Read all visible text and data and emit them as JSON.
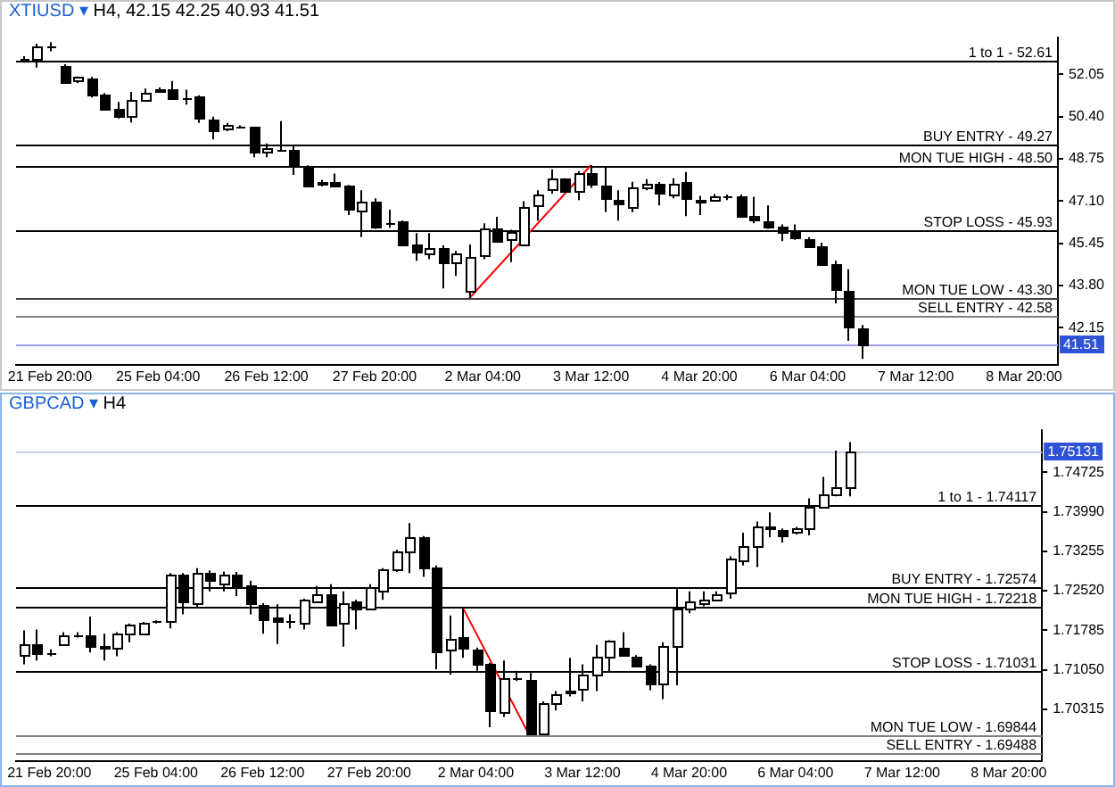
{
  "chart_data": [
    {
      "type": "candlestick",
      "title": "XTIUSD ▾ H4, 42.15 42.25 40.93 41.51",
      "color": "#000000",
      "categories": [
        null,
        null,
        "21 Feb 20:00",
        null,
        null,
        null,
        null,
        null,
        null,
        null,
        "25 Feb 04:00",
        null,
        null,
        null,
        null,
        null,
        null,
        null,
        "26 Feb 12:00",
        null,
        null,
        null,
        null,
        null,
        null,
        null,
        "27 Feb 20:00",
        null,
        null,
        null,
        null,
        null,
        null,
        null,
        "2 Mar 04:00",
        null,
        null,
        null,
        null,
        null,
        null,
        null,
        "3 Mar 12:00",
        null,
        null,
        null,
        null,
        null,
        null,
        null,
        "4 Mar 20:00",
        null,
        null,
        null,
        null,
        null,
        null,
        null,
        "6 Mar 04:00",
        null,
        null,
        null,
        null,
        null,
        null,
        null,
        "7 Mar 12:00",
        null,
        null,
        null,
        null,
        null,
        null,
        null,
        "8 Mar 20:00",
        null,
        null
      ],
      "ohlc": [
        [
          52.62,
          52.75,
          52.5,
          52.65
        ],
        [
          52.65,
          53.24,
          52.31,
          53.13
        ],
        [
          53.13,
          53.3,
          52.95,
          53.15
        ],
        [
          52.37,
          52.44,
          51.73,
          51.77
        ],
        [
          51.75,
          51.96,
          51.7,
          51.92
        ],
        [
          51.9,
          51.94,
          51.14,
          51.29
        ],
        [
          51.27,
          51.32,
          50.69,
          50.71
        ],
        [
          50.71,
          50.97,
          50.32,
          50.45
        ],
        [
          50.41,
          51.36,
          50.17,
          51.06
        ],
        [
          51.08,
          51.49,
          51.04,
          51.34
        ],
        [
          51.42,
          51.53,
          51.37,
          51.47
        ],
        [
          51.47,
          51.79,
          51.1,
          51.12
        ],
        [
          51.14,
          51.45,
          50.86,
          51.12
        ],
        [
          51.17,
          51.23,
          50.15,
          50.32
        ],
        [
          50.3,
          50.39,
          49.5,
          49.87
        ],
        [
          49.89,
          50.15,
          49.83,
          50.06
        ],
        [
          50.0,
          50.05,
          49.94,
          49.98
        ],
        [
          49.98,
          50.0,
          48.81,
          48.99
        ],
        [
          48.97,
          49.35,
          48.81,
          49.14
        ],
        [
          49.12,
          50.22,
          49.07,
          49.12
        ],
        [
          49.09,
          49.25,
          48.12,
          48.43
        ],
        [
          48.43,
          48.49,
          47.71,
          47.74
        ],
        [
          47.79,
          47.93,
          47.67,
          47.85
        ],
        [
          47.84,
          48.17,
          47.67,
          47.69
        ],
        [
          47.69,
          47.73,
          46.55,
          46.76
        ],
        [
          46.72,
          47.52,
          45.69,
          47.09
        ],
        [
          47.09,
          47.2,
          46.01,
          46.12
        ],
        [
          46.27,
          46.76,
          46.05,
          46.27
        ],
        [
          46.29,
          46.33,
          45.34,
          45.36
        ],
        [
          45.38,
          45.84,
          44.76,
          45.08
        ],
        [
          45.06,
          45.84,
          44.82,
          45.27
        ],
        [
          45.25,
          45.36,
          43.68,
          44.69
        ],
        [
          44.71,
          45.15,
          44.17,
          45.04
        ],
        [
          43.64,
          45.4,
          43.3,
          44.93
        ],
        [
          44.93,
          46.23,
          44.82,
          46.01
        ],
        [
          46.03,
          46.48,
          45.47,
          45.53
        ],
        [
          45.58,
          45.97,
          44.71,
          45.86
        ],
        [
          45.41,
          47.09,
          45.36,
          46.87
        ],
        [
          46.91,
          47.52,
          46.33,
          47.35
        ],
        [
          47.56,
          48.34,
          47.39,
          47.95
        ],
        [
          47.95,
          47.99,
          47.41,
          47.45
        ],
        [
          47.52,
          48.27,
          47.13,
          48.21
        ],
        [
          48.17,
          48.5,
          47.61,
          47.74
        ],
        [
          47.69,
          48.43,
          46.66,
          47.17
        ],
        [
          47.13,
          47.52,
          46.33,
          46.96
        ],
        [
          46.87,
          47.85,
          46.66,
          47.63
        ],
        [
          47.67,
          47.95,
          47.52,
          47.8
        ],
        [
          47.78,
          47.84,
          46.92,
          47.41
        ],
        [
          47.35,
          47.99,
          47.2,
          47.8
        ],
        [
          47.84,
          48.23,
          46.51,
          47.2
        ],
        [
          47.17,
          47.3,
          46.55,
          47.09
        ],
        [
          47.13,
          47.37,
          47.09,
          47.3
        ],
        [
          47.26,
          47.35,
          47.13,
          47.26
        ],
        [
          47.3,
          47.35,
          46.48,
          46.51
        ],
        [
          46.48,
          47.26,
          46.23,
          46.31
        ],
        [
          46.29,
          46.92,
          46.01,
          46.1
        ],
        [
          46.1,
          46.18,
          45.53,
          45.9
        ],
        [
          45.97,
          46.18,
          45.58,
          45.66
        ],
        [
          45.62,
          45.69,
          45.32,
          45.36
        ],
        [
          45.32,
          45.47,
          44.61,
          44.65
        ],
        [
          44.65,
          44.76,
          43.1,
          43.64
        ],
        [
          43.59,
          44.43,
          41.63,
          42.17
        ],
        [
          42.15,
          42.25,
          40.93,
          41.51
        ],
        null,
        null,
        null,
        null,
        null,
        null,
        null,
        null,
        null,
        null,
        null,
        null,
        null,
        null
      ],
      "colors": [
        "#000000",
        "#ffffff",
        "#000000",
        "#000000",
        "#ffffff",
        "#000000",
        "#000000",
        "#000000",
        "#ffffff",
        "#ffffff",
        "#ffffff",
        "#000000",
        "#000000",
        "#000000",
        "#000000",
        "#ffffff",
        "#000000",
        "#000000",
        "#ffffff",
        "#000000",
        "#000000",
        "#000000",
        "#ffffff",
        "#000000",
        "#000000",
        "#ffffff",
        "#000000",
        "#000000",
        "#000000",
        "#000000",
        "#ffffff",
        "#000000",
        "#ffffff",
        "#ffffff",
        "#ffffff",
        "#000000",
        "#ffffff",
        "#ffffff",
        "#ffffff",
        "#ffffff",
        "#000000",
        "#ffffff",
        "#000000",
        "#000000",
        "#000000",
        "#ffffff",
        "#ffffff",
        "#000000",
        "#ffffff",
        "#000000",
        "#000000",
        "#ffffff",
        "#000000",
        "#000000",
        "#000000",
        "#000000",
        "#000000",
        "#000000",
        "#000000",
        "#000000",
        "#000000",
        "#000000",
        "#000000",
        null,
        null,
        null,
        null,
        null,
        null,
        null,
        null,
        null,
        null,
        null,
        null,
        null,
        null
      ],
      "series": [
        {
          "type": "line",
          "color": "#ff0000",
          "values": [
            null,
            null,
            null,
            null,
            null,
            null,
            null,
            null,
            null,
            null,
            null,
            null,
            null,
            null,
            null,
            null,
            null,
            null,
            null,
            null,
            null,
            null,
            null,
            null,
            null,
            null,
            null,
            null,
            null,
            null,
            null,
            null,
            null,
            43.3,
            null,
            null,
            null,
            null,
            null,
            null,
            null,
            null,
            48.5,
            null,
            null,
            null,
            null,
            null,
            null,
            null,
            null,
            null,
            null,
            null,
            null,
            null,
            null,
            null,
            null,
            null,
            null,
            null,
            null,
            null,
            null,
            null,
            null,
            null,
            null,
            null,
            null,
            null,
            null,
            null,
            null,
            null,
            null
          ]
        }
      ],
      "ylim": [
        40.7,
        53.5
      ],
      "yticks": [
        42.15,
        {
          "value": 43.8,
          "label": "43.80"
        },
        45.45,
        {
          "value": 47.1,
          "label": "47.10"
        },
        48.75,
        {
          "value": 50.4,
          "label": "50.40"
        },
        52.05
      ],
      "ref_lines": [
        {
          "axis": "y",
          "value": 52.61,
          "label": "1 to 1 - 52.61",
          "color": "#000000"
        },
        {
          "axis": "y",
          "value": 49.27,
          "label": "BUY ENTRY - 49.27",
          "color": "#000000"
        },
        {
          "axis": "y",
          "value": 48.5,
          "label": "MON TUE HIGH - 48.50",
          "color": "#000000"
        },
        {
          "axis": "y",
          "value": 45.93,
          "label": "STOP LOSS - 45.93",
          "color": "#000000"
        },
        {
          "axis": "y",
          "value": 43.3,
          "label": "MON TUE LOW - 43.30",
          "color": "#404040"
        },
        {
          "axis": "y",
          "value": 42.58,
          "label": "SELL ENTRY - 42.58",
          "color": "#808080"
        },
        {
          "axis": "y",
          "value": 41.51,
          "color": "#9a9cf0"
        }
      ],
      "annotations": [
        {
          "text": "41.51",
          "y": 41.51
        }
      ]
    },
    {
      "type": "candlestick",
      "title": "GBPCAD ▾ H4",
      "color": "#000000",
      "categories": [
        null,
        null,
        "21 Feb 20:00",
        null,
        null,
        null,
        null,
        null,
        null,
        null,
        "25 Feb 04:00",
        null,
        null,
        null,
        null,
        null,
        null,
        null,
        "26 Feb 12:00",
        null,
        null,
        null,
        null,
        null,
        null,
        null,
        "27 Feb 20:00",
        null,
        null,
        null,
        null,
        null,
        null,
        null,
        "2 Mar 04:00",
        null,
        null,
        null,
        null,
        null,
        null,
        null,
        "3 Mar 12:00",
        null,
        null,
        null,
        null,
        null,
        null,
        null,
        "4 Mar 20:00",
        null,
        null,
        null,
        null,
        null,
        null,
        null,
        "6 Mar 04:00",
        null,
        null,
        null,
        null,
        null,
        null,
        null,
        "7 Mar 12:00",
        null,
        null,
        null,
        null,
        null,
        null,
        null,
        "8 Mar 20:00",
        null,
        null
      ],
      "ohlc": [
        [
          1.713,
          1.7178,
          1.7115,
          1.7151
        ],
        [
          1.7151,
          1.718,
          1.7122,
          1.7136
        ],
        [
          1.7136,
          1.7143,
          1.713,
          1.7137
        ],
        [
          1.7153,
          1.7175,
          1.7151,
          1.7168
        ],
        [
          1.717,
          1.7175,
          1.7165,
          1.717
        ],
        [
          1.7168,
          1.7204,
          1.7137,
          1.7148
        ],
        [
          1.7148,
          1.7172,
          1.7122,
          1.7146
        ],
        [
          1.7144,
          1.7175,
          1.713,
          1.7172
        ],
        [
          1.7172,
          1.7191,
          1.7156,
          1.7189
        ],
        [
          1.7172,
          1.7194,
          1.717,
          1.7192
        ],
        [
          1.7193,
          1.7197,
          1.7191,
          1.7194
        ],
        [
          1.7196,
          1.7285,
          1.7182,
          1.7282
        ],
        [
          1.7282,
          1.7285,
          1.7208,
          1.7232
        ],
        [
          1.723,
          1.7294,
          1.722,
          1.7285
        ],
        [
          1.7285,
          1.729,
          1.7251,
          1.7271
        ],
        [
          1.7266,
          1.7288,
          1.7251,
          1.7283
        ],
        [
          1.7283,
          1.7287,
          1.7242,
          1.7261
        ],
        [
          1.7261,
          1.7271,
          1.7208,
          1.7229
        ],
        [
          1.7227,
          1.7229,
          1.7172,
          1.7202
        ],
        [
          1.7202,
          1.7227,
          1.7153,
          1.7197
        ],
        [
          1.7196,
          1.7208,
          1.7182,
          1.7196
        ],
        [
          1.7192,
          1.7237,
          1.718,
          1.7234
        ],
        [
          1.7235,
          1.7261,
          1.723,
          1.7247
        ],
        [
          1.7247,
          1.7264,
          1.7191,
          1.7192
        ],
        [
          1.7192,
          1.7251,
          1.7148,
          1.723
        ],
        [
          1.7232,
          1.7235,
          1.718,
          1.7218
        ],
        [
          1.7218,
          1.7264,
          1.7216,
          1.7259
        ],
        [
          1.7253,
          1.7294,
          1.7235,
          1.7293
        ],
        [
          1.7293,
          1.7328,
          1.7287,
          1.7325
        ],
        [
          1.7326,
          1.7378,
          1.7285,
          1.7352
        ],
        [
          1.7352,
          1.7354,
          1.7278,
          1.7297
        ],
        [
          1.7297,
          1.7299,
          1.7106,
          1.7141
        ],
        [
          1.7141,
          1.7206,
          1.7096,
          1.7162
        ],
        [
          1.7165,
          1.7222,
          1.7127,
          1.7144
        ],
        [
          1.7143,
          1.7146,
          1.7103,
          1.7117
        ],
        [
          1.7115,
          1.7118,
          1.6998,
          1.7029
        ],
        [
          1.7027,
          1.7122,
          1.7017,
          1.7089
        ],
        [
          1.7089,
          1.7103,
          1.7084,
          1.7089
        ],
        [
          1.7087,
          1.7099,
          1.6984,
          1.6988
        ],
        [
          1.6986,
          1.7046,
          1.6985,
          1.7043
        ],
        [
          1.7044,
          1.7065,
          1.7029,
          1.706
        ],
        [
          1.7062,
          1.7127,
          1.7055,
          1.7066
        ],
        [
          1.7067,
          1.7115,
          1.7046,
          1.7095
        ],
        [
          1.7095,
          1.7151,
          1.7065,
          1.7129
        ],
        [
          1.7129,
          1.716,
          1.7101,
          1.7158
        ],
        [
          1.7145,
          1.7175,
          1.713,
          1.7132
        ],
        [
          1.713,
          1.7132,
          1.711,
          1.7113
        ],
        [
          1.7111,
          1.7115,
          1.7067,
          1.7079
        ],
        [
          1.7077,
          1.7156,
          1.705,
          1.7148
        ],
        [
          1.7149,
          1.7256,
          1.7076,
          1.7218
        ],
        [
          1.722,
          1.7251,
          1.721,
          1.7232
        ],
        [
          1.7229,
          1.7251,
          1.7223,
          1.7237
        ],
        [
          1.7238,
          1.7251,
          1.7237,
          1.7247
        ],
        [
          1.7247,
          1.7316,
          1.7237,
          1.7311
        ],
        [
          1.7309,
          1.736,
          1.7299,
          1.7335
        ],
        [
          1.7335,
          1.7381,
          1.7296,
          1.7373
        ],
        [
          1.7373,
          1.7398,
          1.7352,
          1.7371
        ],
        [
          1.7365,
          1.7368,
          1.7342,
          1.7356
        ],
        [
          1.7359,
          1.7371,
          1.7357,
          1.7367
        ],
        [
          1.7368,
          1.7424,
          1.7355,
          1.7409
        ],
        [
          1.7411,
          1.7464,
          1.7409,
          1.7433
        ],
        [
          1.7433,
          1.7513,
          1.7428,
          1.7445
        ],
        [
          1.7445,
          1.7529,
          1.7428,
          1.75131
        ],
        null,
        null,
        null,
        null,
        null,
        null,
        null,
        null,
        null,
        null,
        null,
        null,
        null,
        null
      ],
      "colors": [
        "#ffffff",
        "#000000",
        "#000000",
        "#ffffff",
        "#000000",
        "#000000",
        "#000000",
        "#ffffff",
        "#ffffff",
        "#ffffff",
        "#000000",
        "#ffffff",
        "#000000",
        "#ffffff",
        "#000000",
        "#ffffff",
        "#000000",
        "#000000",
        "#000000",
        "#000000",
        "#000000",
        "#ffffff",
        "#ffffff",
        "#000000",
        "#ffffff",
        "#000000",
        "#ffffff",
        "#ffffff",
        "#ffffff",
        "#ffffff",
        "#000000",
        "#000000",
        "#ffffff",
        "#000000",
        "#000000",
        "#000000",
        "#ffffff",
        "#000000",
        "#000000",
        "#ffffff",
        "#ffffff",
        "#ffffff",
        "#ffffff",
        "#ffffff",
        "#ffffff",
        "#000000",
        "#000000",
        "#000000",
        "#ffffff",
        "#ffffff",
        "#ffffff",
        "#ffffff",
        "#ffffff",
        "#ffffff",
        "#ffffff",
        "#ffffff",
        "#000000",
        "#000000",
        "#ffffff",
        "#ffffff",
        "#ffffff",
        "#ffffff",
        "#ffffff",
        null,
        null,
        null,
        null,
        null,
        null,
        null,
        null,
        null,
        null,
        null,
        null,
        null,
        null
      ],
      "series": [
        {
          "type": "line",
          "color": "#ff0000",
          "values": [
            null,
            null,
            null,
            null,
            null,
            null,
            null,
            null,
            null,
            null,
            null,
            null,
            null,
            null,
            null,
            null,
            null,
            null,
            null,
            null,
            null,
            null,
            null,
            null,
            null,
            null,
            null,
            null,
            null,
            null,
            null,
            null,
            null,
            1.7222,
            null,
            null,
            null,
            null,
            1.6984,
            null,
            null,
            null,
            null,
            null,
            null,
            null,
            null,
            null,
            null,
            null,
            null,
            null,
            null,
            null,
            null,
            null,
            null,
            null,
            null,
            null,
            null,
            null,
            null,
            null,
            null,
            null,
            null,
            null,
            null,
            null,
            null,
            null,
            null,
            null,
            null,
            null,
            null
          ]
        }
      ],
      "ylim": [
        1.6935,
        1.7552
      ],
      "yticks": [
        1.70315,
        {
          "value": 1.7105,
          "label": "1.71050"
        },
        1.71785,
        {
          "value": 1.7252,
          "label": "1.72520"
        },
        1.73255,
        {
          "value": 1.7399,
          "label": "1.73990"
        },
        1.74725
      ],
      "ref_lines": [
        {
          "axis": "y",
          "value": 1.74117,
          "label": "1 to 1 - 1.74117",
          "color": "#000000"
        },
        {
          "axis": "y",
          "value": 1.72574,
          "label": "BUY ENTRY - 1.72574",
          "color": "#000000"
        },
        {
          "axis": "y",
          "value": 1.72218,
          "label": "MON TUE HIGH - 1.72218",
          "color": "#000000"
        },
        {
          "axis": "y",
          "value": 1.71031,
          "label": "STOP LOSS - 1.71031",
          "color": "#000000"
        },
        {
          "axis": "y",
          "value": 1.69844,
          "label": "MON TUE LOW - 1.69844",
          "color": "#808080"
        },
        {
          "axis": "y",
          "value": 1.69488,
          "label": "SELL ENTRY - 1.69488",
          "color": "#808080"
        },
        {
          "axis": "y",
          "value": 1.75131,
          "color": "#c4cbe0"
        }
      ],
      "annotations": [
        {
          "text": "1.75131",
          "y": 1.75131
        }
      ]
    }
  ]
}
